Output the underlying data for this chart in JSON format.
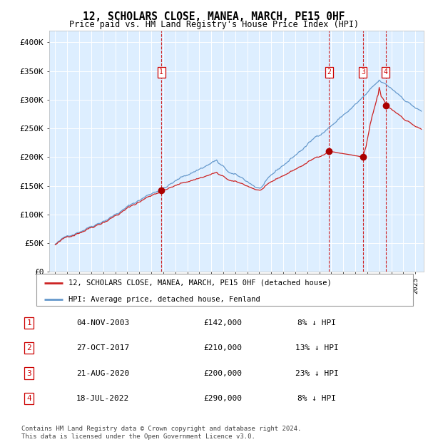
{
  "title": "12, SCHOLARS CLOSE, MANEA, MARCH, PE15 0HF",
  "subtitle": "Price paid vs. HM Land Registry's House Price Index (HPI)",
  "ylim": [
    0,
    420000
  ],
  "yticks": [
    0,
    50000,
    100000,
    150000,
    200000,
    250000,
    300000,
    350000,
    400000
  ],
  "ytick_labels": [
    "£0",
    "£50K",
    "£100K",
    "£150K",
    "£200K",
    "£250K",
    "£300K",
    "£350K",
    "£400K"
  ],
  "plot_bg_color": "#ddeeff",
  "hpi_line_color": "#6699cc",
  "price_line_color": "#cc2222",
  "sale_marker_color": "#aa0000",
  "vline_color": "#cc0000",
  "grid_color": "#ffffff",
  "sales": [
    {
      "date_num": 2003.84,
      "price": 142000,
      "label": "1"
    },
    {
      "date_num": 2017.82,
      "price": 210000,
      "label": "2"
    },
    {
      "date_num": 2020.64,
      "price": 200000,
      "label": "3"
    },
    {
      "date_num": 2022.54,
      "price": 290000,
      "label": "4"
    }
  ],
  "legend_entries": [
    "12, SCHOLARS CLOSE, MANEA, MARCH, PE15 0HF (detached house)",
    "HPI: Average price, detached house, Fenland"
  ],
  "table_rows": [
    {
      "num": "1",
      "date": "04-NOV-2003",
      "price": "£142,000",
      "hpi": "8% ↓ HPI"
    },
    {
      "num": "2",
      "date": "27-OCT-2017",
      "price": "£210,000",
      "hpi": "13% ↓ HPI"
    },
    {
      "num": "3",
      "date": "21-AUG-2020",
      "price": "£200,000",
      "hpi": "23% ↓ HPI"
    },
    {
      "num": "4",
      "date": "18-JUL-2022",
      "price": "£290,000",
      "hpi": "8% ↓ HPI"
    }
  ],
  "footer": "Contains HM Land Registry data © Crown copyright and database right 2024.\nThis data is licensed under the Open Government Licence v3.0."
}
